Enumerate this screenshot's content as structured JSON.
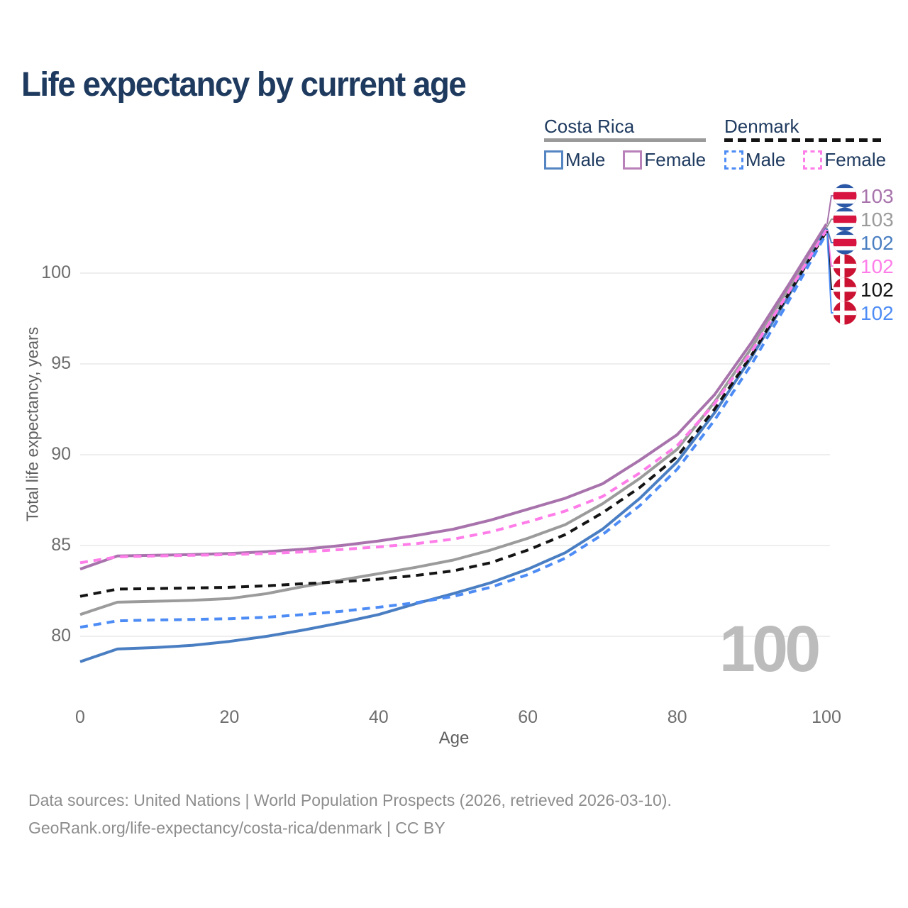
{
  "title": "Life expectancy by current age",
  "legend": {
    "groups": [
      {
        "country": "Costa Rica",
        "line_style": "solid",
        "underline_color": "#9a9a9a",
        "items": [
          {
            "label": "Male",
            "color": "#5585c2"
          },
          {
            "label": "Female",
            "color": "#b981b9"
          }
        ]
      },
      {
        "country": "Denmark",
        "line_style": "dashed",
        "underline_color": "#141414",
        "items": [
          {
            "label": "Male",
            "color": "#4d8cf5"
          },
          {
            "label": "Female",
            "color": "#ff7de9"
          }
        ]
      }
    ]
  },
  "axes": {
    "x": {
      "label": "Age",
      "ticks": [
        0,
        20,
        40,
        60,
        80,
        100
      ],
      "range": [
        0,
        100
      ]
    },
    "y": {
      "label": "Total life expectancy, years",
      "ticks": [
        80,
        85,
        90,
        95,
        100
      ],
      "range": [
        78,
        103
      ]
    }
  },
  "watermark": "100",
  "footer": {
    "line1": "Data sources: United Nations | World Population Prospects (2026, retrieved 2026-03-10).",
    "line2": "GeoRank.org/life-expectancy/costa-rica/denmark | CC BY"
  },
  "chart_data": {
    "type": "line",
    "title": "Life expectancy by current age",
    "xlabel": "Age",
    "ylabel": "Total life expectancy, years",
    "xlim": [
      0,
      100
    ],
    "ylim": [
      78,
      103
    ],
    "grid": "horizontal",
    "legend_position": "top-right",
    "ages": [
      0,
      5,
      10,
      15,
      20,
      25,
      30,
      35,
      40,
      45,
      50,
      55,
      60,
      65,
      70,
      75,
      80,
      85,
      90,
      95,
      100
    ],
    "series": [
      {
        "name": "Costa Rica Female",
        "country": "Costa Rica",
        "sex": "Female",
        "line_style": "solid",
        "color": "#a873ac",
        "flag": "costa-rica",
        "end_label": "103",
        "values": [
          83.7,
          84.42,
          84.46,
          84.5,
          84.56,
          84.66,
          84.8,
          85.0,
          85.25,
          85.55,
          85.9,
          86.4,
          87.0,
          87.6,
          88.4,
          89.7,
          91.1,
          93.3,
          96.2,
          99.4,
          102.7
        ]
      },
      {
        "name": "Costa Rica Both sexes",
        "country": "Costa Rica",
        "sex": "Both",
        "line_style": "solid",
        "color": "#9b9b9b",
        "flag": "costa-rica",
        "end_label": "103",
        "values": [
          81.2,
          81.88,
          81.93,
          81.98,
          82.08,
          82.35,
          82.75,
          83.1,
          83.45,
          83.8,
          84.2,
          84.75,
          85.4,
          86.15,
          87.3,
          88.7,
          90.3,
          92.9,
          95.9,
          99.2,
          102.55
        ]
      },
      {
        "name": "Costa Rica Male",
        "country": "Costa Rica",
        "sex": "Male",
        "line_style": "solid",
        "color": "#4a7ec2",
        "flag": "costa-rica",
        "end_label": "102",
        "values": [
          78.6,
          79.3,
          79.38,
          79.5,
          79.72,
          80.0,
          80.35,
          80.75,
          81.2,
          81.8,
          82.35,
          82.95,
          83.7,
          84.6,
          85.9,
          87.6,
          89.6,
          92.3,
          95.4,
          98.8,
          102.45
        ]
      },
      {
        "name": "Denmark Female",
        "country": "Denmark",
        "sex": "Female",
        "line_style": "dashed",
        "color": "#ff7de9",
        "flag": "denmark",
        "end_label": "102",
        "values": [
          84.05,
          84.38,
          84.42,
          84.46,
          84.5,
          84.56,
          84.65,
          84.78,
          84.92,
          85.1,
          85.35,
          85.75,
          86.3,
          86.9,
          87.7,
          89.0,
          90.5,
          92.8,
          95.7,
          99.0,
          102.38
        ]
      },
      {
        "name": "Denmark Both sexes",
        "country": "Denmark",
        "sex": "Both",
        "line_style": "dashed",
        "color": "#141414",
        "flag": "denmark",
        "end_label": "102",
        "values": [
          82.2,
          82.6,
          82.63,
          82.66,
          82.7,
          82.78,
          82.9,
          83.0,
          83.15,
          83.35,
          83.6,
          84.05,
          84.75,
          85.6,
          86.8,
          88.2,
          89.9,
          92.5,
          95.5,
          98.9,
          102.3
        ]
      },
      {
        "name": "Denmark Male",
        "country": "Denmark",
        "sex": "Male",
        "line_style": "dashed",
        "color": "#4d8cf5",
        "flag": "denmark",
        "end_label": "102",
        "values": [
          80.5,
          80.85,
          80.9,
          80.93,
          80.97,
          81.05,
          81.2,
          81.38,
          81.6,
          81.85,
          82.2,
          82.7,
          83.4,
          84.3,
          85.6,
          87.2,
          89.2,
          91.9,
          95.0,
          98.5,
          102.2
        ]
      }
    ],
    "end_label_order_top_to_bottom": [
      "Costa Rica Female",
      "Costa Rica Both sexes",
      "Costa Rica Male",
      "Denmark Female",
      "Denmark Both sexes",
      "Denmark Male"
    ]
  }
}
